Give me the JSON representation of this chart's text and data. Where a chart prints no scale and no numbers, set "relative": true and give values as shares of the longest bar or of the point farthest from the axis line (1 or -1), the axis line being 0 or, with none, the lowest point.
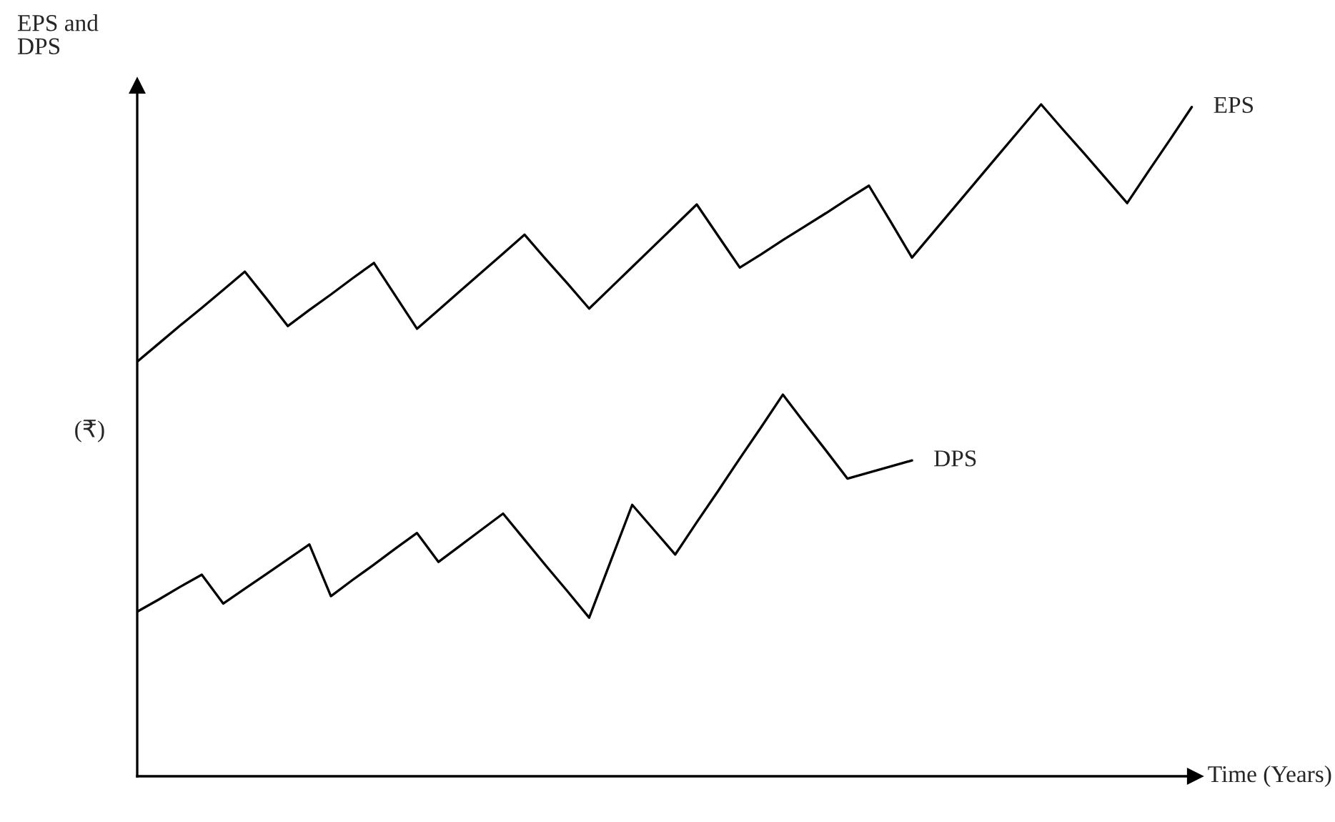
{
  "chart_data": {
    "type": "line",
    "relative": true,
    "ylabel": "EPS and\nDPS",
    "xlabel": "Time (Years)",
    "annotations": [
      "(₹)"
    ],
    "legend": false,
    "marker": "none",
    "line_style": "solid",
    "categories": [
      null,
      null,
      null,
      null,
      null,
      null,
      null,
      null,
      null,
      null,
      null,
      null,
      null,
      null,
      null,
      null,
      null,
      null,
      null,
      null,
      null,
      null,
      null,
      null,
      null,
      null,
      null,
      null,
      null,
      null,
      null,
      null,
      null,
      null,
      null,
      null,
      null,
      null,
      null,
      null,
      null,
      null,
      null,
      null,
      null,
      null,
      null,
      null,
      null,
      null
    ],
    "series": [
      {
        "name": "EPS",
        "color": "#000000",
        "values": [
          0.617,
          0.644,
          0.671,
          0.697,
          0.724,
          0.751,
          0.711,
          0.67,
          0.694,
          0.717,
          0.741,
          0.764,
          0.715,
          0.666,
          0.694,
          0.722,
          0.75,
          0.778,
          0.806,
          0.769,
          0.733,
          0.696,
          0.727,
          0.758,
          0.789,
          0.82,
          0.851,
          0.804,
          0.757,
          0.777,
          0.798,
          0.818,
          0.838,
          0.859,
          0.879,
          0.826,
          0.772,
          0.81,
          0.848,
          0.886,
          0.924,
          0.962,
          1.0,
          0.963,
          0.927,
          0.89,
          0.853,
          0.901,
          0.948,
          0.996
        ]
      },
      {
        "name": "DPS",
        "color": "#000000",
        "values": [
          0.245,
          0.263,
          0.282,
          0.3,
          0.257,
          0.279,
          0.301,
          0.323,
          0.345,
          0.268,
          0.292,
          0.315,
          0.339,
          0.362,
          0.319,
          0.343,
          0.367,
          0.391,
          0.352,
          0.313,
          0.275,
          0.236,
          0.32,
          0.404,
          0.367,
          0.33,
          0.378,
          0.425,
          0.473,
          0.52,
          0.568,
          0.526,
          0.485,
          0.443,
          0.452,
          0.461,
          0.47,
          null,
          null,
          null,
          null,
          null,
          null,
          null,
          null,
          null,
          null,
          null,
          null,
          null
        ]
      }
    ]
  }
}
